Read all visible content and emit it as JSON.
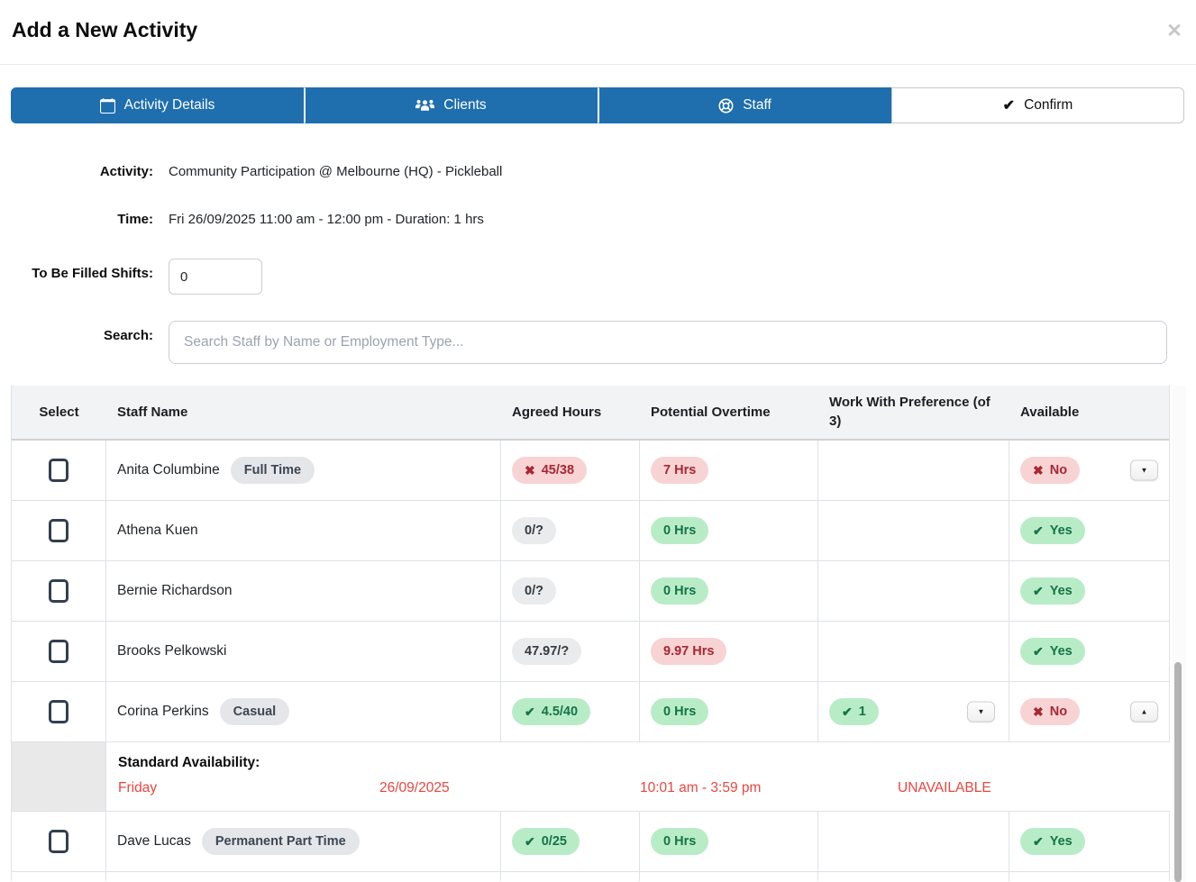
{
  "window": {
    "title": "Add a New Activity",
    "close_icon": "✕"
  },
  "colors": {
    "accent_blue": "#1f6eae",
    "pill_red_bg": "#f8d3d4",
    "pill_red_fg": "#a72733",
    "pill_green_bg": "#b8ecc7",
    "pill_green_fg": "#157347",
    "pill_gray_bg": "#e9ebed",
    "pill_gray_fg": "#343a40",
    "danger_text": "#e8463f",
    "header_bg": "#f1f3f4",
    "badge_bg": "#e4e6e9",
    "badge_fg": "#3c4653"
  },
  "tabs": [
    {
      "label": "Activity Details",
      "icon": "calendar-icon",
      "style": "blue"
    },
    {
      "label": "Clients",
      "icon": "users-icon",
      "style": "blue"
    },
    {
      "label": "Staff",
      "icon": "life-ring-icon",
      "style": "blue"
    },
    {
      "label": "Confirm",
      "icon": "check-icon",
      "style": "white"
    }
  ],
  "form": {
    "activity": {
      "label": "Activity:",
      "value": "Community Participation @ Melbourne (HQ) - Pickleball"
    },
    "time": {
      "label": "Time:",
      "value": "Fri 26/09/2025 11:00 am - 12:00 pm - Duration: 1 hrs"
    },
    "shifts": {
      "label": "To Be Filled Shifts:",
      "value": "0"
    },
    "search": {
      "label": "Search:",
      "placeholder": "Search Staff by Name or Employment Type..."
    }
  },
  "table": {
    "headers": [
      "Select",
      "Staff Name",
      "Agreed Hours",
      "Potential Overtime",
      "Work With Preference (of 3)",
      "Available"
    ],
    "rows": [
      {
        "type": "staff",
        "name": "Anita Columbine",
        "employment": "Full Time",
        "agreed": {
          "text": "45/38",
          "status": "red",
          "icon": "x"
        },
        "overtime": {
          "text": "7 Hrs",
          "status": "red"
        },
        "preference": null,
        "available": {
          "text": "No",
          "status": "red",
          "icon": "x"
        },
        "expander": "down"
      },
      {
        "type": "staff",
        "name": "Athena Kuen",
        "employment": null,
        "agreed": {
          "text": "0/?",
          "status": "gray"
        },
        "overtime": {
          "text": "0 Hrs",
          "status": "green"
        },
        "preference": null,
        "available": {
          "text": "Yes",
          "status": "green",
          "icon": "check"
        },
        "expander": null
      },
      {
        "type": "staff",
        "name": "Bernie Richardson",
        "employment": null,
        "agreed": {
          "text": "0/?",
          "status": "gray"
        },
        "overtime": {
          "text": "0 Hrs",
          "status": "green"
        },
        "preference": null,
        "available": {
          "text": "Yes",
          "status": "green",
          "icon": "check"
        },
        "expander": null
      },
      {
        "type": "staff",
        "name": "Brooks Pelkowski",
        "employment": null,
        "agreed": {
          "text": "47.97/?",
          "status": "gray"
        },
        "overtime": {
          "text": "9.97 Hrs",
          "status": "red"
        },
        "preference": null,
        "available": {
          "text": "Yes",
          "status": "green",
          "icon": "check"
        },
        "expander": null
      },
      {
        "type": "staff",
        "name": "Corina Perkins",
        "employment": "Casual",
        "agreed": {
          "text": "4.5/40",
          "status": "green",
          "icon": "check"
        },
        "overtime": {
          "text": "0 Hrs",
          "status": "green"
        },
        "preference": {
          "text": "1",
          "status": "green",
          "icon": "check",
          "expander": "down"
        },
        "available": {
          "text": "No",
          "status": "red",
          "icon": "x"
        },
        "expander": "up"
      },
      {
        "type": "availability",
        "label": "Standard Availability:",
        "day": "Friday",
        "date": "26/09/2025",
        "time": "10:01 am - 3:59 pm",
        "status": "UNAVAILABLE"
      },
      {
        "type": "staff",
        "name": "Dave Lucas",
        "employment": "Permanent Part Time",
        "agreed": {
          "text": "0/25",
          "status": "green",
          "icon": "check"
        },
        "overtime": {
          "text": "0 Hrs",
          "status": "green"
        },
        "preference": null,
        "available": {
          "text": "Yes",
          "status": "green",
          "icon": "check"
        },
        "expander": null
      },
      {
        "type": "partial"
      }
    ]
  }
}
